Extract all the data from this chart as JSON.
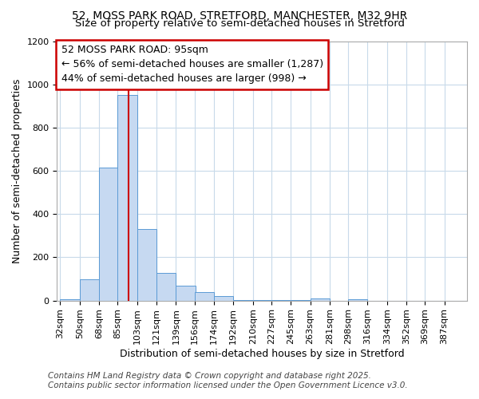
{
  "title_line1": "52, MOSS PARK ROAD, STRETFORD, MANCHESTER, M32 9HR",
  "title_line2": "Size of property relative to semi-detached houses in Stretford",
  "xlabel": "Distribution of semi-detached houses by size in Stretford",
  "ylabel": "Number of semi-detached properties",
  "bin_labels": [
    "32sqm",
    "50sqm",
    "68sqm",
    "85sqm",
    "103sqm",
    "121sqm",
    "139sqm",
    "156sqm",
    "174sqm",
    "192sqm",
    "210sqm",
    "227sqm",
    "245sqm",
    "263sqm",
    "281sqm",
    "298sqm",
    "316sqm",
    "334sqm",
    "352sqm",
    "369sqm",
    "387sqm"
  ],
  "bin_edges": [
    32,
    50,
    68,
    85,
    103,
    121,
    139,
    156,
    174,
    192,
    210,
    227,
    245,
    263,
    281,
    298,
    316,
    334,
    352,
    369,
    387
  ],
  "bar_heights": [
    5,
    100,
    615,
    950,
    330,
    128,
    68,
    40,
    22,
    4,
    4,
    3,
    3,
    10,
    0,
    7,
    0,
    0,
    0,
    0,
    0
  ],
  "bar_color": "#c6d9f1",
  "bar_edge_color": "#5b9bd5",
  "red_line_x": 95,
  "annotation_title": "52 MOSS PARK ROAD: 95sqm",
  "annotation_line2": "← 56% of semi-detached houses are smaller (1,287)",
  "annotation_line3": "44% of semi-detached houses are larger (998) →",
  "annotation_box_color": "#ffffff",
  "annotation_box_edge_color": "#cc0000",
  "red_line_color": "#cc0000",
  "ylim": [
    0,
    1200
  ],
  "yticks": [
    0,
    200,
    400,
    600,
    800,
    1000,
    1200
  ],
  "footnote_line1": "Contains HM Land Registry data © Crown copyright and database right 2025.",
  "footnote_line2": "Contains public sector information licensed under the Open Government Licence v3.0.",
  "bg_color": "#ffffff",
  "grid_color": "#c8daea",
  "title_fontsize": 10,
  "subtitle_fontsize": 9.5,
  "axis_label_fontsize": 9,
  "tick_fontsize": 8,
  "annotation_fontsize": 9,
  "footnote_fontsize": 7.5
}
